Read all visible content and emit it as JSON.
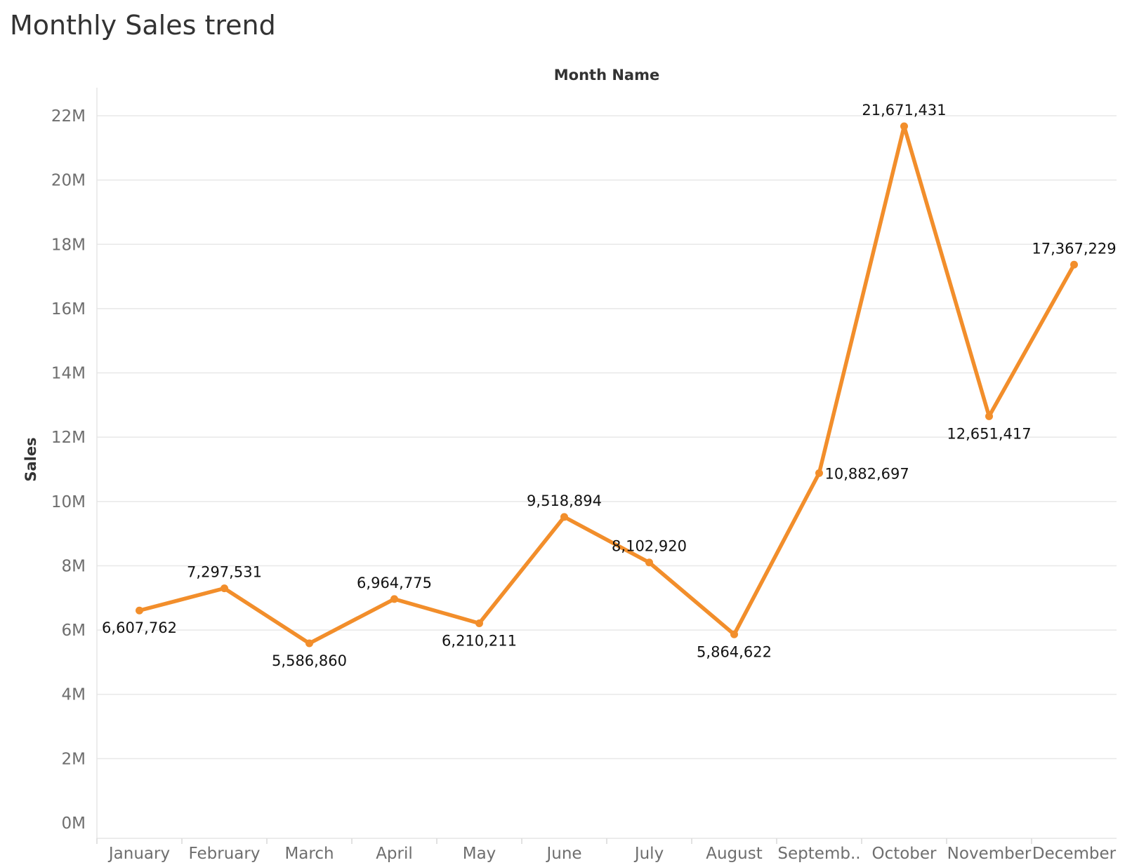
{
  "chart_data": {
    "type": "line",
    "title": "Monthly Sales trend",
    "column_header": "Month Name",
    "ylabel": "Sales",
    "categories": [
      "January",
      "February",
      "March",
      "April",
      "May",
      "June",
      "July",
      "August",
      "Septemb..",
      "October",
      "November",
      "December"
    ],
    "series": [
      {
        "values": [
          6607762,
          7297531,
          5586860,
          6964775,
          6210211,
          9518894,
          8102920,
          5864622,
          10882697,
          21671431,
          12651417,
          17367229
        ],
        "value_labels": [
          "6,607,762",
          "7,297,531",
          "5,586,860",
          "6,964,775",
          "6,210,211",
          "9,518,894",
          "8,102,920",
          "5,864,622",
          "10,882,697",
          "21,671,431",
          "12,651,417",
          "17,367,229"
        ],
        "label_positions": [
          "below",
          "above",
          "below",
          "above",
          "below",
          "above",
          "above",
          "below",
          "right",
          "above",
          "below",
          "above"
        ],
        "color": "#f28e2b"
      }
    ],
    "ylim": [
      0,
      22000000
    ],
    "y_ticks": [
      0,
      2000000,
      4000000,
      6000000,
      8000000,
      10000000,
      12000000,
      14000000,
      16000000,
      18000000,
      20000000,
      22000000
    ],
    "y_tick_labels": [
      "0M",
      "2M",
      "4M",
      "6M",
      "8M",
      "10M",
      "12M",
      "14M",
      "16M",
      "18M",
      "20M",
      "22M"
    ],
    "grid": true,
    "legend": "none",
    "colors": {
      "line": "#f28e2b",
      "grid": "#e8e8e8",
      "axis_text": "#6e6e6e",
      "label_text": "#111111"
    }
  }
}
